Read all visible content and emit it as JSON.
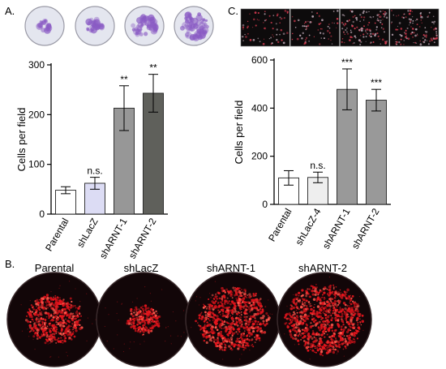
{
  "panels": {
    "a": "A.",
    "b": "B.",
    "c": "C."
  },
  "chart_data": [
    {
      "type": "bar",
      "ylabel": "Cells per field",
      "ylim": [
        0,
        300
      ],
      "yticks": [
        0,
        100,
        200,
        300
      ],
      "categories": [
        "Parental",
        "shLacZ",
        "shARNT-1",
        "shARNT-2"
      ],
      "values": [
        48,
        62,
        213,
        243
      ],
      "errors": [
        7,
        12,
        45,
        38
      ],
      "significance": [
        "",
        "n.s.",
        "**",
        "**"
      ],
      "bar_colors": [
        "#ffffff",
        "#dcdcf4",
        "#979797",
        "#5f605b"
      ]
    },
    {
      "type": "bar",
      "ylabel": "Cells per field",
      "ylim": [
        0,
        600
      ],
      "yticks": [
        0,
        200,
        400,
        600
      ],
      "categories": [
        "Parental",
        "shLacZ-4",
        "shARNT-1",
        "shARNT-2"
      ],
      "values": [
        110,
        112,
        478,
        433
      ],
      "errors": [
        30,
        22,
        85,
        45
      ],
      "significance": [
        "",
        "n.s.",
        "***",
        "***"
      ],
      "bar_colors": [
        "#ffffff",
        "#eeeeee",
        "#999999",
        "#999999"
      ]
    }
  ],
  "panel_b": {
    "labels": [
      "Parental",
      "shLacZ",
      "shARNT-1",
      "shARNT-2"
    ],
    "signal_density": [
      0.45,
      0.1,
      0.7,
      0.8
    ]
  },
  "panel_a_images": {
    "stain_density": [
      0.15,
      0.35,
      0.7,
      0.9
    ]
  },
  "panel_c_images": {
    "signal_density": [
      0.15,
      0.15,
      0.55,
      0.5
    ]
  }
}
